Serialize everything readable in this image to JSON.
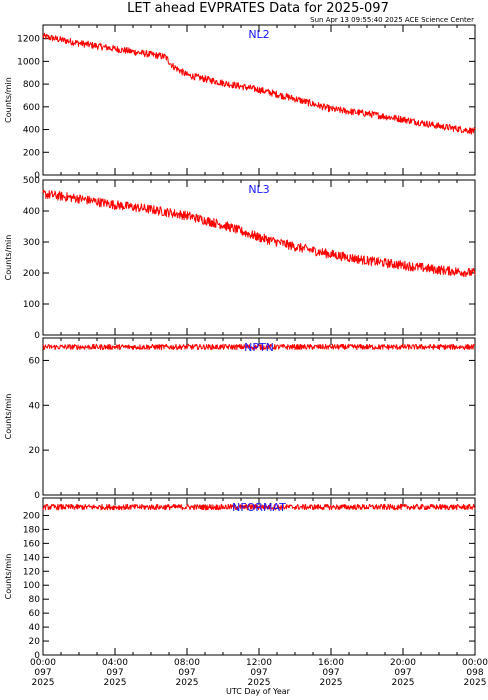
{
  "title": "LET ahead EVPRATES Data for 2025-097",
  "subtitle": "Sun Apr 13 09:55:40 2025 ACE Science Center",
  "xlabel": "UTC Day of Year",
  "colors": {
    "series": "#ff0000",
    "panel_label": "#1a1aff",
    "axes": "#000000"
  },
  "chart_data": [
    {
      "type": "line",
      "name": "NL2",
      "ylabel": "Counts/min",
      "ylim": [
        0,
        1320
      ],
      "yticks": [
        0,
        200,
        400,
        600,
        800,
        1000,
        1200
      ],
      "x_hours": [
        0,
        2,
        4,
        6,
        6.8,
        7.2,
        8,
        10,
        12,
        14,
        16,
        18,
        20,
        22,
        24
      ],
      "y": [
        1220,
        1160,
        1110,
        1060,
        1040,
        960,
        880,
        810,
        750,
        670,
        580,
        540,
        490,
        430,
        385
      ],
      "noise": 30
    },
    {
      "type": "line",
      "name": "NL3",
      "ylabel": "Counts/min",
      "ylim": [
        0,
        500
      ],
      "yticks": [
        0,
        100,
        200,
        300,
        400,
        500
      ],
      "x_hours": [
        0,
        2,
        4,
        6,
        8,
        10,
        12,
        14,
        16,
        18,
        20,
        22,
        24
      ],
      "y": [
        455,
        440,
        420,
        405,
        385,
        355,
        315,
        285,
        260,
        240,
        225,
        210,
        200
      ],
      "noise": 15
    },
    {
      "type": "line",
      "name": "NPTN",
      "ylabel": "Counts/min",
      "ylim": [
        0,
        70
      ],
      "yticks": [
        0,
        20,
        40,
        60
      ],
      "x_hours": [
        0,
        24
      ],
      "y": [
        66,
        66
      ],
      "noise": 1.2
    },
    {
      "type": "line",
      "name": "NFORMAT",
      "ylabel": "Counts/min",
      "ylim": [
        0,
        225
      ],
      "yticks": [
        0,
        20,
        40,
        60,
        80,
        100,
        120,
        140,
        160,
        180,
        200
      ],
      "x_hours": [
        0,
        24
      ],
      "y": [
        212,
        212
      ],
      "noise": 4
    }
  ],
  "x_axis": {
    "tick_hours": [
      0,
      4,
      8,
      12,
      16,
      20,
      24
    ],
    "tick_labels": [
      [
        "00:00",
        "097",
        "2025"
      ],
      [
        "04:00",
        "097",
        "2025"
      ],
      [
        "08:00",
        "097",
        "2025"
      ],
      [
        "12:00",
        "097",
        "2025"
      ],
      [
        "16:00",
        "097",
        "2025"
      ],
      [
        "20:00",
        "097",
        "2025"
      ],
      [
        "00:00",
        "098",
        "2025"
      ]
    ],
    "range_hours": [
      0,
      24
    ]
  }
}
